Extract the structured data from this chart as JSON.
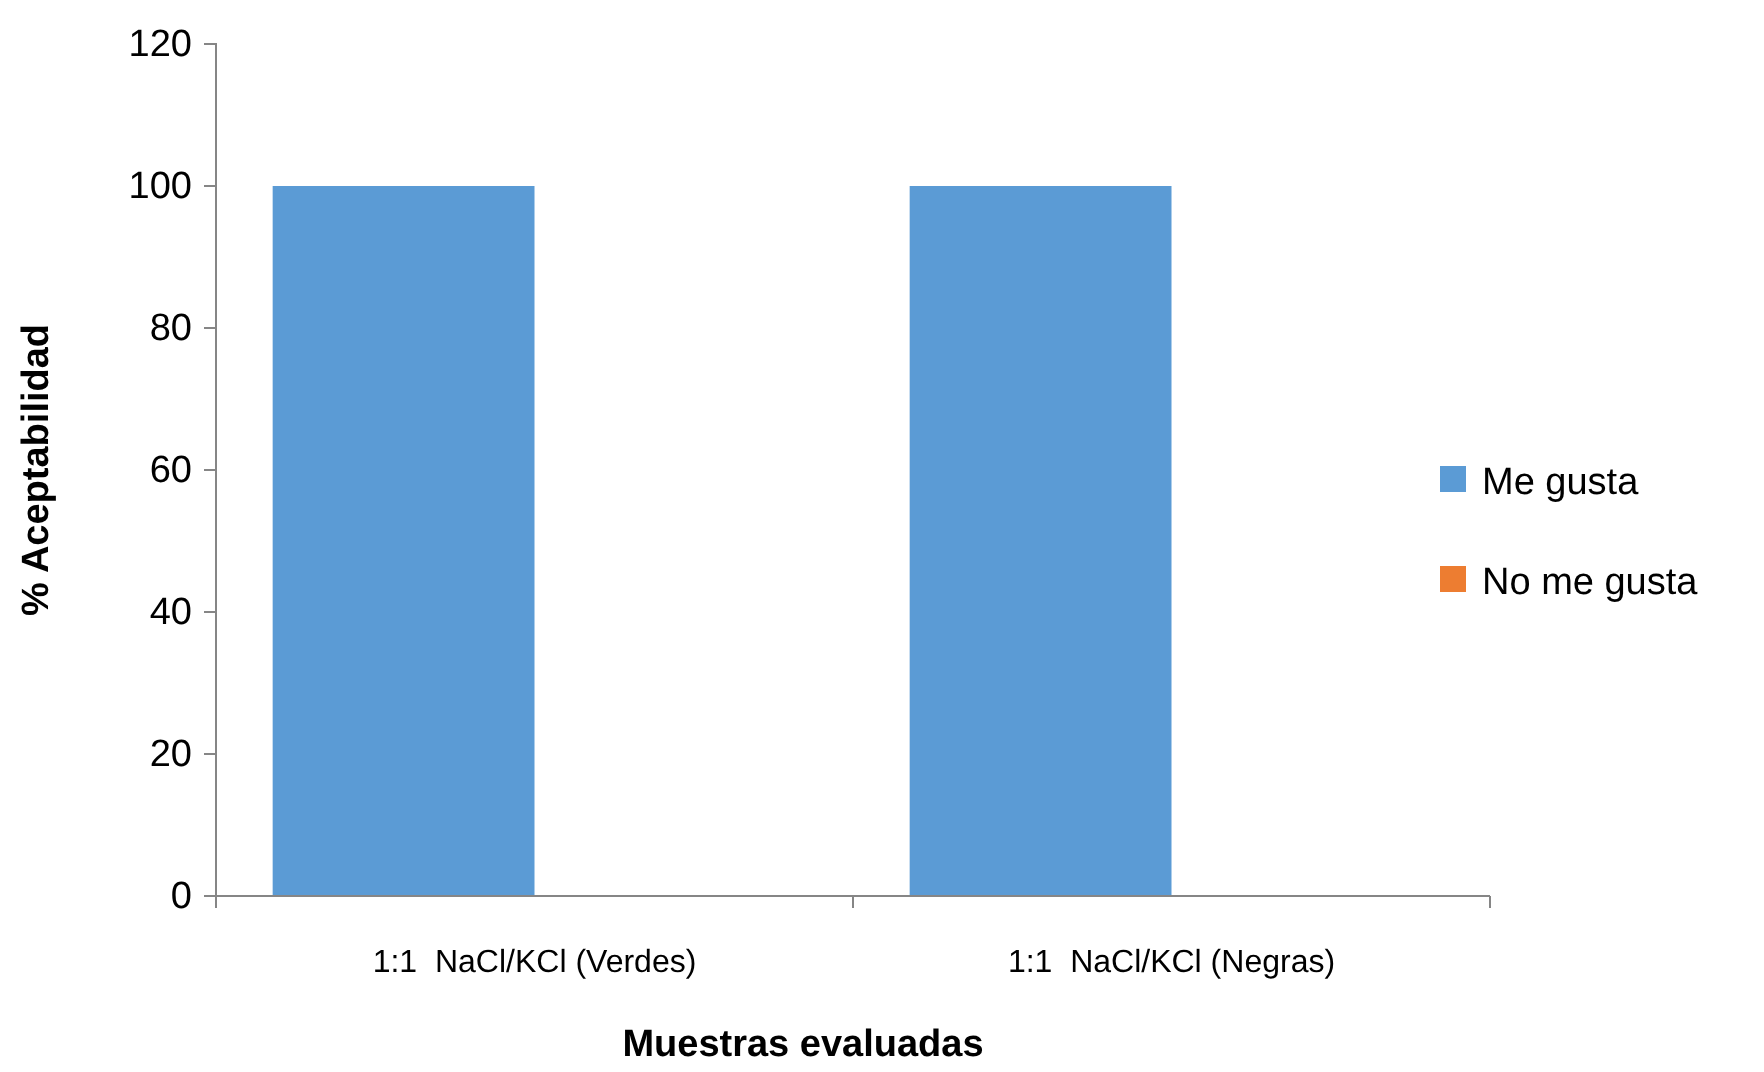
{
  "chart_data": {
    "type": "bar",
    "xlabel": "Muestras evaluadas",
    "ylabel": "% Aceptabilidad",
    "categories": [
      "1:1  NaCl/KCl (Verdes)",
      "1:1  NaCl/KCl (Negras)"
    ],
    "series": [
      {
        "name": "Me gusta",
        "color": "#5b9bd5",
        "values": [
          100,
          100
        ]
      },
      {
        "name": "No me gusta",
        "color": "#ed7d31",
        "values": [
          0,
          0
        ]
      }
    ],
    "ylim": [
      0,
      120
    ],
    "yticks": [
      0,
      20,
      40,
      60,
      80,
      100,
      120
    ],
    "grid": false,
    "legend": "right"
  }
}
